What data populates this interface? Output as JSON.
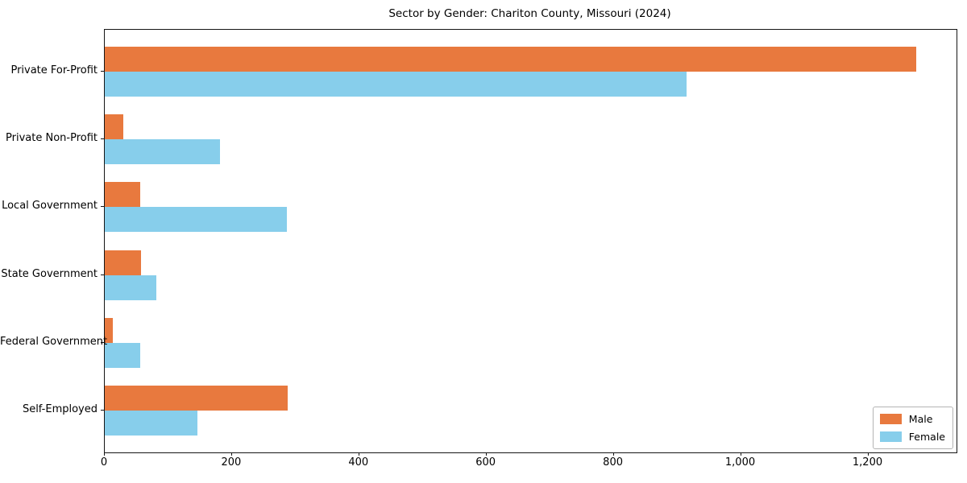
{
  "figure": {
    "background_color": "#ffffff",
    "spine_color": "#161616"
  },
  "chart_data": {
    "type": "bar",
    "orientation": "horizontal",
    "title": "Sector by Gender: Chariton County, Missouri (2024)",
    "xlabel": "",
    "ylabel": "",
    "categories": [
      "Private For-Profit",
      "Private Non-Profit",
      "Local Government",
      "State Government",
      "Federal Government",
      "Self-Employed"
    ],
    "series": [
      {
        "name": "Male",
        "color": "#e8793e",
        "values": [
          1275,
          29,
          56,
          57,
          13,
          287
        ]
      },
      {
        "name": "Female",
        "color": "#87ceeb",
        "values": [
          915,
          181,
          286,
          81,
          56,
          145
        ]
      }
    ],
    "xlim": [
      0,
      1338.75
    ],
    "x_ticks": [
      0,
      200,
      400,
      600,
      800,
      1000,
      1200
    ],
    "x_tick_labels": [
      "0",
      "200",
      "400",
      "600",
      "800",
      "1,000",
      "1,200"
    ],
    "grid": false,
    "legend": {
      "position": "lower right",
      "entries": [
        "Male",
        "Female"
      ]
    }
  }
}
